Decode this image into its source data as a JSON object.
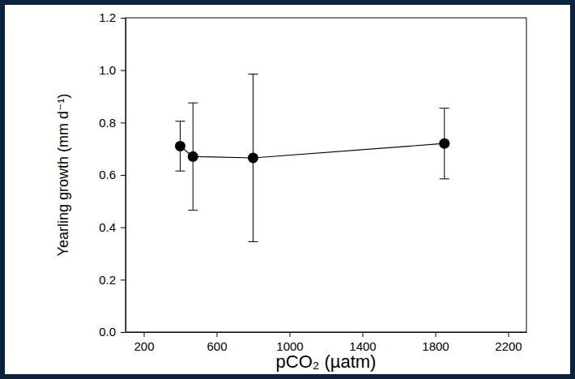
{
  "chart_data": {
    "type": "line",
    "x_label": "pCO₂ (µatm)",
    "y_label": "Yearling growth (mm d⁻¹)",
    "x": [
      400,
      470,
      800,
      1850
    ],
    "values": [
      0.71,
      0.67,
      0.665,
      0.72
    ],
    "errors": [
      0.095,
      0.205,
      0.32,
      0.135
    ],
    "color": "#000000",
    "marker": "circle",
    "xlim": [
      100,
      2300
    ],
    "xticks": [
      200,
      600,
      1000,
      1400,
      1800,
      2200
    ],
    "ylim": [
      0,
      1.2
    ],
    "yticks": [
      {
        "value": 0,
        "label": "0.0"
      },
      0.2,
      0.4,
      0.6,
      0.8,
      {
        "value": 1,
        "label": "1.0"
      },
      1.2
    ],
    "grid": false
  }
}
